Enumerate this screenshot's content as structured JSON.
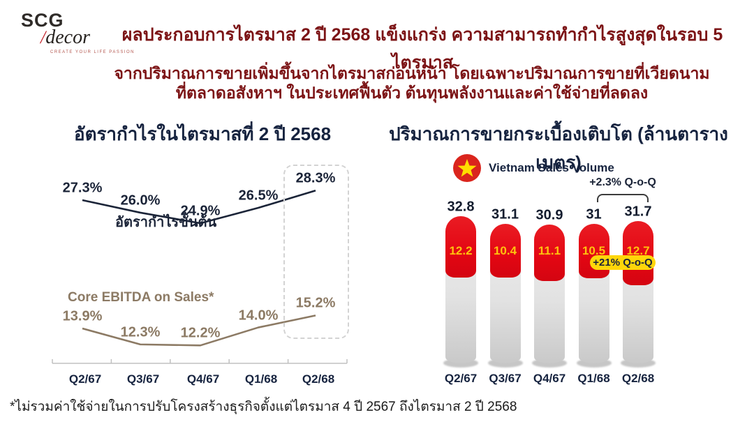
{
  "logo": {
    "scg": "SCG",
    "slash": "/",
    "decor": "decor",
    "tagline": "CREATE YOUR LIFE PASSION"
  },
  "header": {
    "title": "ผลประกอบการไตรมาส 2 ปี 2568 แข็งแกร่ง ความสามารถทำกำไรสูงสุดในรอบ 5 ไตรมาส",
    "subtitle_line1": "จากปริมาณการขายเพิ่มขึ้นจากไตรมาสก่อนหน้า โดยเฉพาะปริมาณการขายที่เวียดนาม",
    "subtitle_line2": "ที่ตลาดอสังหาฯ ในประเทศฟื้นตัว ต้นทุนพลังงานและค่าใช้จ่ายที่ลดลง"
  },
  "footnote": "*ไม่รวมค่าใช้จ่ายในการปรับโครงสร้างธุรกิจตั้งแต่ไตรมาส 4 ปี 2567 ถึงไตรมาส 2 ปี 2568",
  "colors": {
    "title_maroon": "#7C1416",
    "navy": "#16233F",
    "line_gross": "#1B2438",
    "line_ebitda": "#8C7A64",
    "bar_red": "#E30613",
    "bar_gray": "#D9D9D9",
    "value_yellow": "#FFC20E",
    "pill_yellow": "#FFD60A",
    "flag_red": "#DA251D",
    "star_yellow": "#FFDE00"
  },
  "chart_data": [
    {
      "id": "margin-line-chart",
      "type": "line",
      "title": "อัตรากำไรในไตรมาสที่ 2 ปี 2568",
      "categories": [
        "Q2/67",
        "Q3/67",
        "Q4/67",
        "Q1/68",
        "Q2/68"
      ],
      "unit": "%",
      "grid": false,
      "legend_position": "inline",
      "highlight_category": "Q2/68",
      "series": [
        {
          "name": "อัตรากำไรขั้นต้น",
          "values": [
            27.3,
            26.0,
            24.9,
            26.5,
            28.3
          ],
          "labels": [
            "27.3%",
            "26.0%",
            "24.9%",
            "26.5%",
            "28.3%"
          ],
          "color": "#1B2438"
        },
        {
          "name": "Core EBITDA on Sales*",
          "values": [
            13.9,
            12.3,
            12.2,
            14.0,
            15.2
          ],
          "labels": [
            "13.9%",
            "12.3%",
            "12.2%",
            "14.0%",
            "15.2%"
          ],
          "color": "#8C7A64"
        }
      ]
    },
    {
      "id": "tile-sales-volume-chart",
      "type": "bar",
      "stacked": true,
      "title": "ปริมาณการขายกระเบื้องเติบโต (ล้านตารางเมตร)",
      "legend": "Vietnam Sales Volume",
      "categories": [
        "Q2/67",
        "Q3/67",
        "Q4/67",
        "Q1/68",
        "Q2/68"
      ],
      "totals": [
        32.8,
        31.1,
        30.9,
        31,
        31.7
      ],
      "total_labels": [
        "32.8",
        "31.1",
        "30.9",
        "31",
        "31.7"
      ],
      "series": [
        {
          "name": "Vietnam Sales Volume",
          "values": [
            12.2,
            10.4,
            11.1,
            10.5,
            12.7
          ],
          "labels": [
            "12.2",
            "10.4",
            "11.1",
            "10.5",
            "12.7"
          ],
          "color": "#E30613",
          "label_color": "#FFC20E"
        }
      ],
      "annotations": [
        {
          "text": "+2.3% Q-o-Q",
          "between": [
            "Q1/68",
            "Q2/68"
          ],
          "position": "above-bracket"
        },
        {
          "text": "+21% Q-o-Q",
          "between": [
            "Q1/68",
            "Q2/68"
          ],
          "position": "on-bars",
          "style": "yellow-pill"
        }
      ],
      "grid": false
    }
  ]
}
